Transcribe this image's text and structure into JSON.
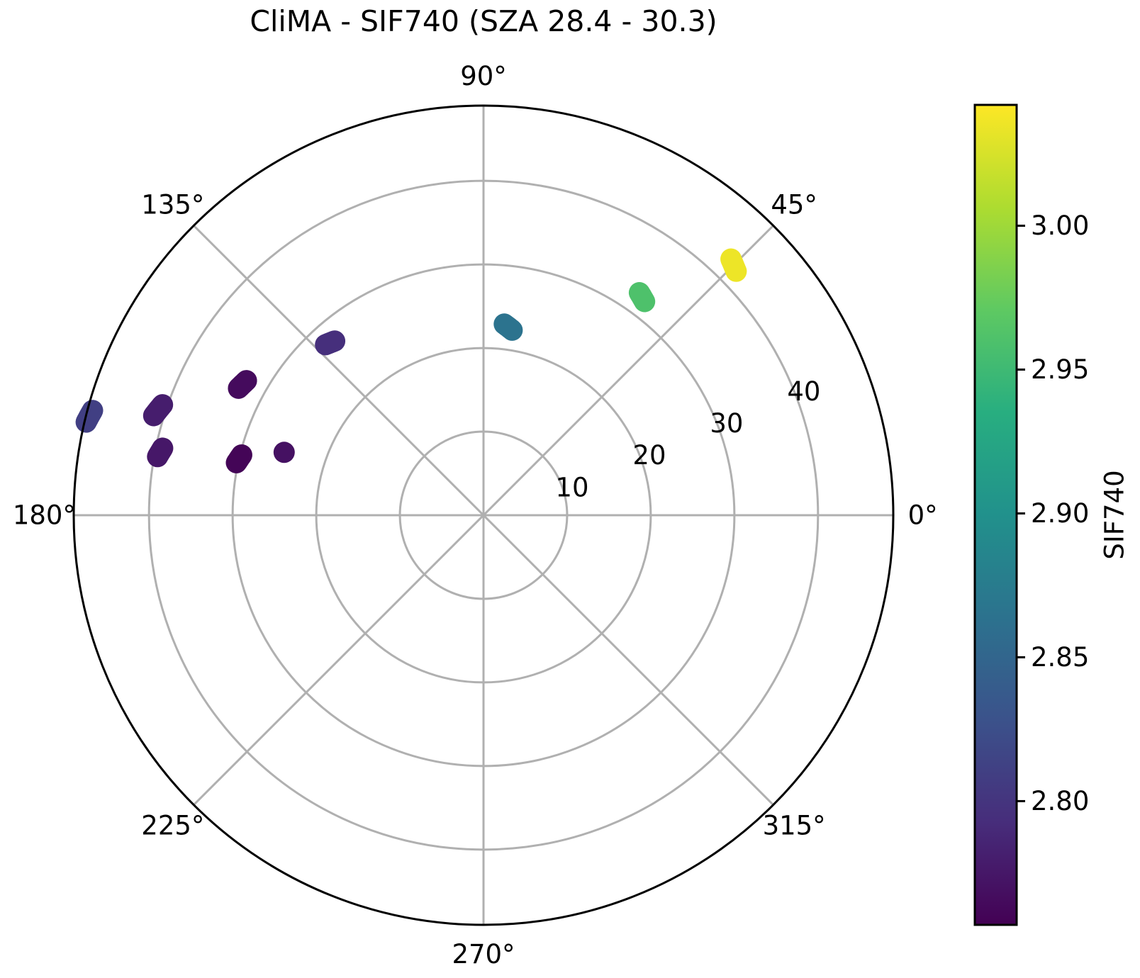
{
  "chart_data": {
    "type": "scatter",
    "projection": "polar",
    "title": "CliMA - SIF740 (SZA 28.4 - 30.3)",
    "theta_ticks": [
      "0°",
      "45°",
      "90°",
      "135°",
      "180°",
      "225°",
      "270°",
      "315°"
    ],
    "theta_tick_values_deg": [
      0,
      45,
      90,
      135,
      180,
      225,
      270,
      315
    ],
    "r_ticks": [
      "10",
      "20",
      "30",
      "40"
    ],
    "r_tick_values": [
      10,
      20,
      30,
      40
    ],
    "r_range": [
      0,
      49
    ],
    "r_label_angle_deg": 22.5,
    "grid": true,
    "colorbar": {
      "label": "SIF740",
      "colormap": "viridis",
      "range": [
        2.757,
        3.042
      ],
      "ticks": [
        "2.80",
        "2.85",
        "2.90",
        "2.95",
        "3.00"
      ],
      "tick_values": [
        2.8,
        2.85,
        2.9,
        2.95,
        3.0
      ],
      "placement": "right"
    },
    "points": [
      {
        "theta": [
          165.0,
          166.8
        ],
        "r": [
          48.4,
          48.8
        ],
        "value": 2.81
      },
      {
        "theta": [
          161.0,
          163.2
        ],
        "r": [
          40.6,
          41.2
        ],
        "value": 2.78
      },
      {
        "theta": [
          168.2,
          169.8
        ],
        "r": [
          39.2,
          39.6
        ],
        "value": 2.775
      },
      {
        "theta": [
          150.4,
          152.6
        ],
        "r": [
          32.6,
          33.0
        ],
        "value": 2.765
      },
      {
        "theta": [
          166.0,
          168.0
        ],
        "r": [
          29.8,
          30.2
        ],
        "value": 2.76
      },
      {
        "theta": [
          162.5,
          162.5
        ],
        "r": [
          25.0,
          25.0
        ],
        "value": 2.77
      },
      {
        "theta": [
          130.5,
          132.8
        ],
        "r": [
          27.4,
          27.8
        ],
        "value": 2.795
      },
      {
        "theta": [
          81.2,
          83.8
        ],
        "r": [
          22.4,
          23.0
        ],
        "value": 2.865
      },
      {
        "theta": [
          53.0,
          55.0
        ],
        "r": [
          32.0,
          32.5
        ],
        "value": 2.96
      },
      {
        "theta": [
          44.0,
          46.0
        ],
        "r": [
          42.0,
          42.6
        ],
        "value": 3.035
      }
    ]
  }
}
